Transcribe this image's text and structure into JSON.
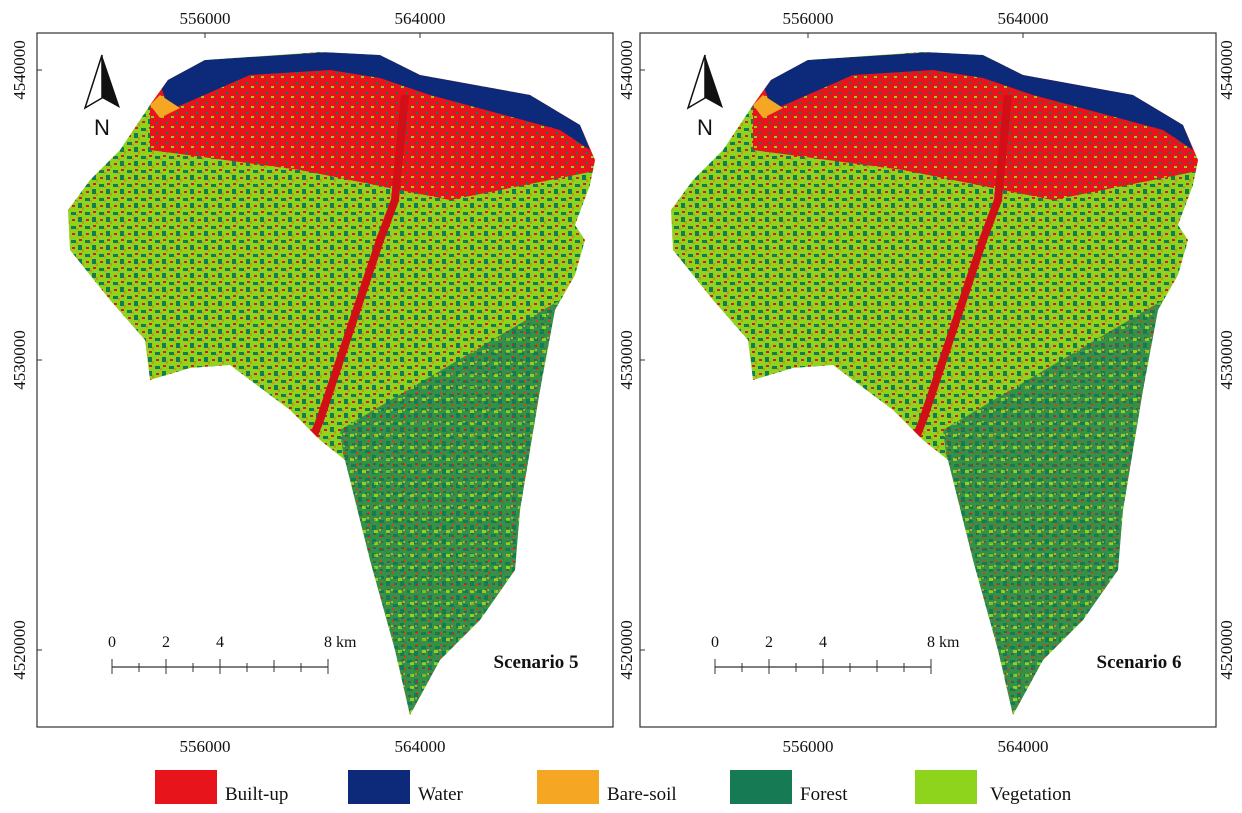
{
  "panels": [
    {
      "scenario": "Scenario 5",
      "x_ticks": [
        556000,
        564000
      ],
      "y_ticks": [
        4540000,
        4530000,
        4520000
      ],
      "north": "N",
      "scale_bar": {
        "ticks": [
          0,
          2,
          4,
          8
        ],
        "unit": "km"
      }
    },
    {
      "scenario": "Scenario 6",
      "x_ticks": [
        556000,
        564000
      ],
      "y_ticks": [
        4540000,
        4530000,
        4520000
      ],
      "north": "N",
      "scale_bar": {
        "ticks": [
          0,
          2,
          4,
          8
        ],
        "unit": "km"
      }
    }
  ],
  "legend": [
    {
      "name": "Built-up",
      "color": "#e8141b"
    },
    {
      "name": "Water",
      "color": "#0d2a7a"
    },
    {
      "name": "Bare-soil",
      "color": "#f5a623"
    },
    {
      "name": "Forest",
      "color": "#167a55"
    },
    {
      "name": "Vegetation",
      "color": "#8fd41c"
    }
  ]
}
